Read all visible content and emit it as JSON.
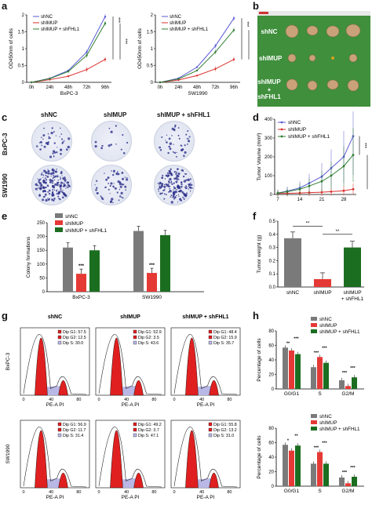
{
  "labels": {
    "a": "a",
    "b": "b",
    "c": "c",
    "d": "d",
    "e": "e",
    "f": "f",
    "g": "g",
    "h": "h"
  },
  "legend": {
    "shNC": "shNC",
    "shIMUP": "shIMUP",
    "shIMUP_shFHL1": "shIMUP + shFHL1",
    "shIMUP_shFHL1_2": "shIMUP",
    "shIMUP_shFHL1_3": "+ shFHL1"
  },
  "colors": {
    "shNC": "#5a5ad6",
    "shIMUP": "#d9302f",
    "shFHL1": "#2e7d32",
    "bar_nc": "#7a7a7a",
    "bar_imup": "#e53935",
    "bar_fhl1": "#1b6e20",
    "blue": "#1f3fbf"
  },
  "panel_a": {
    "ylabel": "OD450nm of cells",
    "xticks": [
      "0h",
      "24h",
      "48h",
      "72h",
      "96h"
    ],
    "left_title": "BxPC-3",
    "right_title": "SW1990",
    "yticks": [
      "0",
      "0.5",
      "1",
      "1.5",
      "2"
    ],
    "sig": "***",
    "chart_data": [
      {
        "type": "line",
        "title": "BxPC-3",
        "x": [
          "0h",
          "24h",
          "48h",
          "72h",
          "96h"
        ],
        "ylim": [
          0,
          2
        ],
        "series": [
          {
            "name": "shNC",
            "values": [
              0.0,
              0.12,
              0.35,
              0.9,
              1.95
            ]
          },
          {
            "name": "shIMUP",
            "values": [
              0.0,
              0.08,
              0.18,
              0.38,
              0.68
            ]
          },
          {
            "name": "shIMUP + shFHL1",
            "values": [
              0.0,
              0.11,
              0.32,
              0.8,
              1.75
            ]
          }
        ]
      },
      {
        "type": "line",
        "title": "SW1990",
        "x": [
          "0h",
          "24h",
          "48h",
          "72h",
          "96h"
        ],
        "ylim": [
          0,
          2
        ],
        "series": [
          {
            "name": "shNC",
            "values": [
              0.0,
              0.12,
              0.45,
              1.08,
              1.9
            ]
          },
          {
            "name": "shIMUP",
            "values": [
              0.0,
              0.07,
              0.2,
              0.4,
              0.68
            ]
          },
          {
            "name": "shIMUP + shFHL1",
            "values": [
              0.0,
              0.1,
              0.35,
              0.9,
              1.55
            ]
          }
        ]
      }
    ]
  },
  "panel_b": {
    "rows": [
      "shNC",
      "shIMUP",
      "shIMUP",
      "+ shFHL1"
    ]
  },
  "panel_c": {
    "cols": [
      "shNC",
      "shIMUP",
      "shIMUP + shFHL1"
    ],
    "rows": [
      "BxPC-3",
      "SW1990"
    ]
  },
  "panel_d": {
    "ylabel": "Tumor Volume (mm³)",
    "xticks": [
      "7",
      "14",
      "21",
      "28"
    ],
    "yticks": [
      "0",
      "100",
      "200",
      "300",
      "400"
    ],
    "sig": "***",
    "chart_data": {
      "type": "line",
      "x": [
        7,
        10,
        14,
        17,
        21,
        24,
        28,
        31
      ],
      "ylim": [
        0,
        400
      ],
      "series": [
        {
          "name": "shNC",
          "values": [
            8,
            18,
            35,
            60,
            95,
            140,
            200,
            310
          ]
        },
        {
          "name": "shIMUP",
          "values": [
            5,
            6,
            8,
            10,
            12,
            15,
            20,
            28
          ]
        },
        {
          "name": "shIMUP + shFHL1",
          "values": [
            7,
            15,
            28,
            45,
            70,
            100,
            150,
            210
          ]
        }
      ]
    }
  },
  "panel_e": {
    "ylabel": "Colony formations",
    "yticks": [
      "0",
      "50",
      "100",
      "150",
      "200",
      "250"
    ],
    "groups": [
      "BxPC-3",
      "SW1990"
    ],
    "sig": "***",
    "chart_data": {
      "type": "bar",
      "categories": [
        "BxPC-3",
        "SW1990"
      ],
      "ylim": [
        0,
        250
      ],
      "series": [
        {
          "name": "shNC",
          "values": [
            160,
            220
          ]
        },
        {
          "name": "shIMUP",
          "values": [
            65,
            68
          ]
        },
        {
          "name": "shIMUP + shFHL1",
          "values": [
            150,
            205
          ]
        }
      ]
    }
  },
  "panel_f": {
    "ylabel": "Tumor weight (g)",
    "yticks": [
      "0.0",
      "0.1",
      "0.2",
      "0.3",
      "0.4",
      "0.5"
    ],
    "cats": [
      "shNC",
      "shIMUP",
      "shIMUP",
      "+ shFHL1"
    ],
    "sig": "**",
    "chart_data": {
      "type": "bar",
      "categories": [
        "shNC",
        "shIMUP",
        "shIMUP + shFHL1"
      ],
      "ylim": [
        0,
        0.5
      ],
      "values": [
        0.37,
        0.06,
        0.3
      ]
    }
  },
  "panel_g": {
    "col_titles": [
      "shNC",
      "shIMUP",
      "shIMUP + shFHL1"
    ],
    "row_titles": [
      "BxPC-3",
      "SW1990"
    ],
    "xlabel": "PE-A PI",
    "stats": [
      [
        "Dip G1: 57.5",
        "Dip G2: 12.5",
        "Dip S: 30.0"
      ],
      [
        "Dip G1: 52.9",
        "Dip G2: 3.5",
        "Dip S: 43.6"
      ],
      [
        "Dip G1: 48.4",
        "Dip G2: 15.9",
        "Dip S: 35.7"
      ],
      [
        "Dip G1: 56.9",
        "Dip G2: 11.7",
        "Dip S: 31.4"
      ],
      [
        "Dip G1: 49.2",
        "Dip G2: 3.7",
        "Dip S: 47.1"
      ],
      [
        "Dip G1: 55.8",
        "Dip G2: 13.2",
        "Dip S: 31.0"
      ]
    ]
  },
  "panel_h": {
    "ylabel": "Percentage of cells",
    "cats": [
      "G0/G1",
      "S",
      "G2/M"
    ],
    "yticks": [
      "0",
      "20",
      "40",
      "60",
      "80"
    ],
    "chart_data": [
      {
        "type": "bar",
        "categories": [
          "G0/G1",
          "S",
          "G2/M"
        ],
        "ylim": [
          0,
          80
        ],
        "series": [
          {
            "name": "shNC",
            "values": [
              57,
              30,
              12
            ]
          },
          {
            "name": "shIMUP",
            "values": [
              53,
              44,
              4
            ]
          },
          {
            "name": "shIMUP + shFHL1",
            "values": [
              48,
              36,
              16
            ]
          }
        ]
      },
      {
        "type": "bar",
        "categories": [
          "G0/G1",
          "S",
          "G2/M"
        ],
        "ylim": [
          0,
          80
        ],
        "series": [
          {
            "name": "shNC",
            "values": [
              57,
              31,
              12
            ]
          },
          {
            "name": "shIMUP",
            "values": [
              49,
              47,
              4
            ]
          },
          {
            "name": "shIMUP + shFHL1",
            "values": [
              56,
              31,
              13
            ]
          }
        ]
      }
    ],
    "sig1": [
      "**",
      "***",
      "***",
      "***",
      "***",
      "***"
    ],
    "sig2": [
      "*",
      "**",
      "***",
      "***",
      "***",
      "***"
    ]
  }
}
